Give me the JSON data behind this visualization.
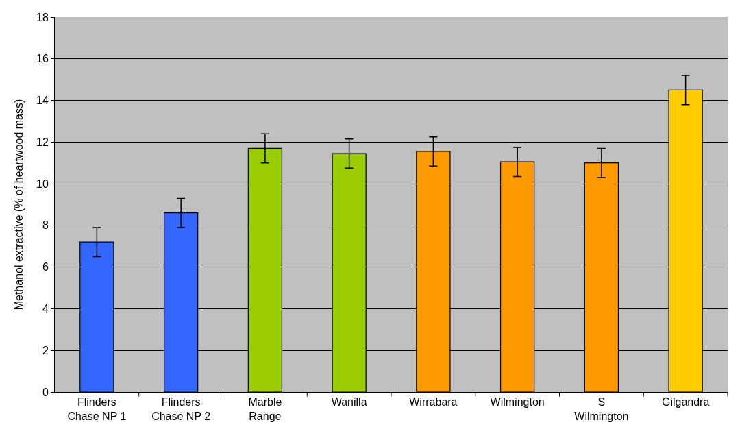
{
  "chart_data": {
    "type": "bar",
    "ylabel": "Methanol extractive (% of heartwood mass)",
    "categories": [
      "Flinders\nChase NP 1",
      "Flinders\nChase NP 2",
      "Marble\nRange",
      "Wanilla",
      "Wirrabara",
      "Wilmington",
      "S\nWilmington",
      "Gilgandra"
    ],
    "values": [
      7.2,
      8.6,
      11.7,
      11.45,
      11.55,
      11.05,
      11.0,
      14.5
    ],
    "errors": [
      0.7,
      0.7,
      0.7,
      0.7,
      0.7,
      0.7,
      0.7,
      0.7
    ],
    "colors": [
      "#3366ff",
      "#3366ff",
      "#99cc00",
      "#99cc00",
      "#ff9900",
      "#ff9900",
      "#ff9900",
      "#ffcc00"
    ],
    "ylim": [
      0,
      18
    ],
    "yticks": [
      0,
      2,
      4,
      6,
      8,
      10,
      12,
      14,
      16,
      18
    ],
    "grid": "y"
  }
}
